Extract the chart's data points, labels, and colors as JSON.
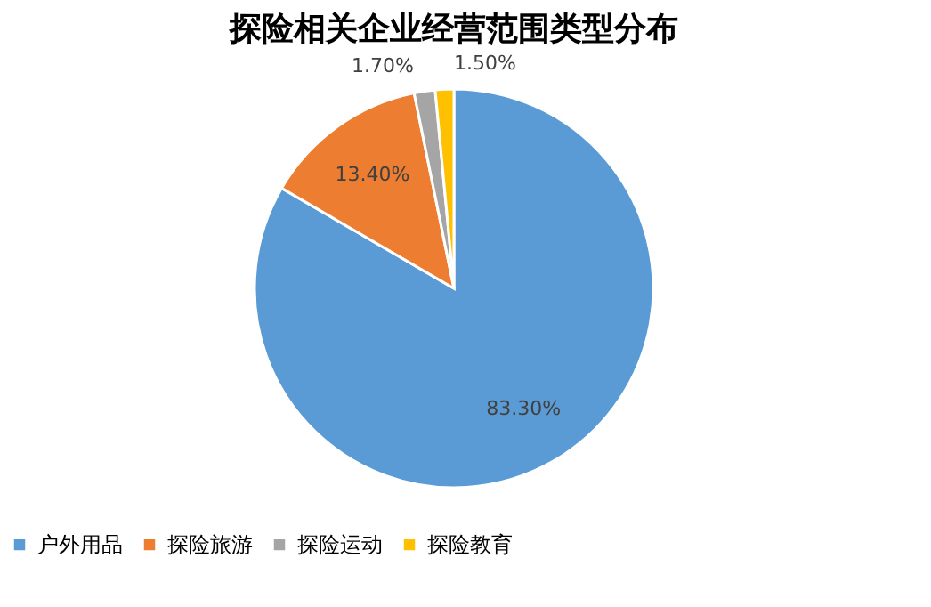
{
  "chart_data": {
    "type": "pie",
    "title": "探险相关企业经营范围类型分布",
    "categories": [
      "户外用品",
      "探险旅游",
      "探险运动",
      "探险教育"
    ],
    "values": [
      83.3,
      13.4,
      1.7,
      1.5
    ],
    "colors": [
      "#5b9bd5",
      "#ed7d31",
      "#a5a5a5",
      "#ffc000"
    ],
    "value_labels": [
      "83.30%",
      "13.40%",
      "1.70%",
      "1.50%"
    ],
    "legend": "bottom"
  }
}
